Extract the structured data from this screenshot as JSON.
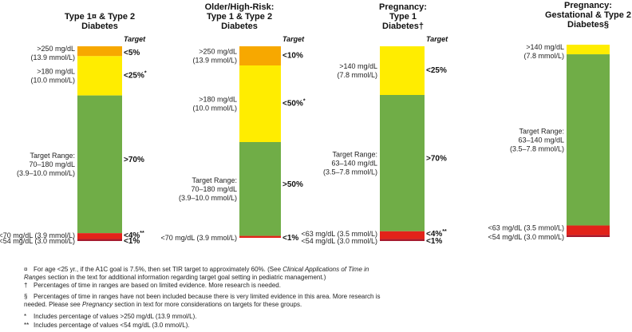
{
  "chart_data": [
    {
      "type": "stacked-bar",
      "title_lines": [
        "Type 1¤ & Type 2",
        "Diabetes"
      ],
      "target_header": "Target",
      "segments": [
        {
          "range_lines": [
            ">250 mg/dL",
            "(13.9 mmol/L)"
          ],
          "target": "<5%",
          "percent": 5,
          "color": "#F7A800"
        },
        {
          "range_lines": [
            ">180 mg/dL",
            "(10.0 mmol/L)"
          ],
          "target": "<25%*",
          "percent": 20,
          "color": "#FFED00"
        },
        {
          "range_lines": [
            "Target Range:",
            "70–180 mg/dL",
            "(3.9–10.0 mmol/L)"
          ],
          "target": ">70%",
          "percent": 70,
          "color": "#70AD47"
        },
        {
          "range_lines": [
            "<70 mg/dL (3.9 mmol/L)"
          ],
          "target": "<4%**",
          "percent": 3,
          "color": "#E2231A"
        },
        {
          "range_lines": [
            "<54 mg/dL (3.0 mmol/L)"
          ],
          "target": "<1%",
          "percent": 1,
          "color": "#A6192E"
        }
      ]
    },
    {
      "type": "stacked-bar",
      "title_lines": [
        "Older/High-Risk:",
        "Type 1 & Type 2",
        "Diabetes"
      ],
      "target_header": "Target",
      "segments": [
        {
          "range_lines": [
            ">250 mg/dL",
            "(13.9 mmol/L)"
          ],
          "target": "<10%",
          "percent": 10,
          "color": "#F7A800"
        },
        {
          "range_lines": [
            ">180 mg/dL",
            "(10.0 mmol/L)"
          ],
          "target": "<50%*",
          "percent": 40,
          "color": "#FFED00"
        },
        {
          "range_lines": [
            "Target Range:",
            "70–180 mg/dL",
            "(3.9–10.0 mmol/L)"
          ],
          "target": ">50%",
          "percent": 49,
          "color": "#70AD47"
        },
        {
          "range_lines": [
            "<70 mg/dL (3.9 mmol/L)"
          ],
          "target": "<1%",
          "percent": 1,
          "color": "#E2231A"
        }
      ]
    },
    {
      "type": "stacked-bar",
      "title_lines": [
        "Pregnancy:",
        "Type 1",
        "Diabetes†"
      ],
      "target_header": "Target",
      "segments": [
        {
          "range_lines": [
            ">140 mg/dL",
            "(7.8 mmol/L)"
          ],
          "target": "<25%",
          "percent": 25,
          "color": "#FFED00"
        },
        {
          "range_lines": [
            "Target Range:",
            "63–140 mg/dL",
            "(3.5–7.8 mmol/L)"
          ],
          "target": ">70%",
          "percent": 70,
          "color": "#70AD47"
        },
        {
          "range_lines": [
            "<63 mg/dL (3.5 mmol/L)"
          ],
          "target": "<4%**",
          "percent": 4,
          "color": "#E2231A"
        },
        {
          "range_lines": [
            "<54 mg/dL (3.0 mmol/L)"
          ],
          "target": "<1%",
          "percent": 1,
          "color": "#A6192E"
        }
      ]
    },
    {
      "type": "stacked-bar",
      "title_lines": [
        "Pregnancy:",
        "Gestational & Type 2",
        "Diabetes§"
      ],
      "target_header": "",
      "segments": [
        {
          "range_lines": [
            ">140 mg/dL",
            "(7.8 mmol/L)"
          ],
          "target": "",
          "percent": 5,
          "color": "#FFED00"
        },
        {
          "range_lines": [
            "Target Range:",
            "63–140 mg/dL",
            "(3.5–7.8 mmol/L)"
          ],
          "target": "",
          "percent": 89,
          "color": "#70AD47"
        },
        {
          "range_lines": [
            "<63 mg/dL (3.5 mmol/L)"
          ],
          "target": "",
          "percent": 5,
          "color": "#E2231A"
        },
        {
          "range_lines": [
            "<54 mg/dL (3.0 mmol/L)"
          ],
          "target": "",
          "percent": 1,
          "color": "#A6192E"
        }
      ]
    }
  ],
  "footnotes": {
    "n1_sym": "¤",
    "n1_pre": "For age <25 yr., if the A1C goal is 7.5%, then set TIR target to approximately 60%.  (See ",
    "n1_em": "Clinical Applications of Time in Ranges",
    "n1_post": " section in the text for additional information regarding target goal setting in pediatric management.)",
    "n2_sym": "†",
    "n2": "Percentages of time in ranges are based on limited evidence. More research is needed.",
    "n3_sym": "§",
    "n3_pre": "Percentages of time in ranges have not been included because there is very limited evidence in this area.  More research is needed. Please see ",
    "n3_em": "Pregnancy",
    "n3_post": " section in text for more considerations on targets for these groups.",
    "n4_sym": "*",
    "n4": "Includes percentage of values >250 mg/dL (13.9 mmol/L).",
    "n5_sym": "**",
    "n5": "Includes percentage of values <54 mg/dL (3.0 mmol/L)."
  }
}
